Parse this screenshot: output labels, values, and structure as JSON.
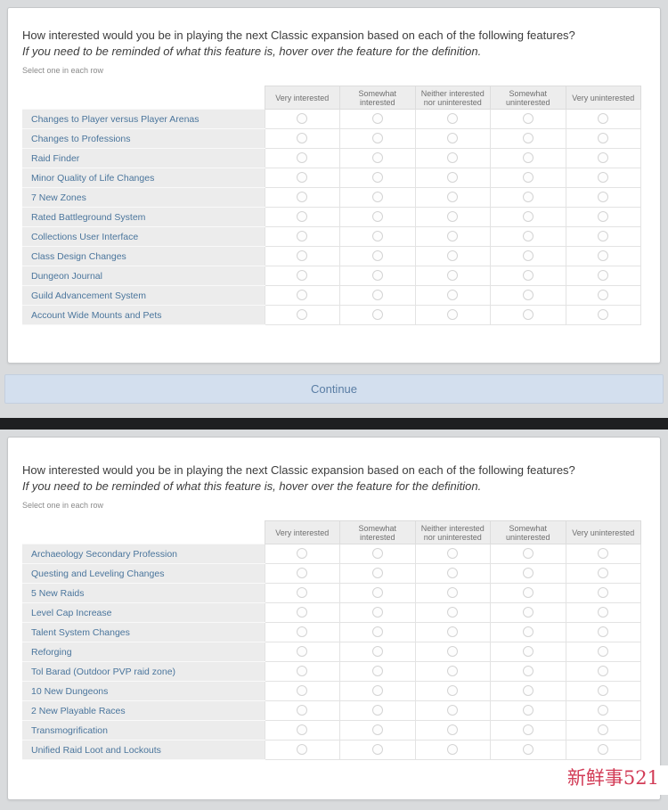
{
  "question": {
    "title": "How interested would you be in playing the next Classic expansion based on each of the following features?",
    "subtitle": "If you need to be reminded of what this feature is, hover over the feature for the definition.",
    "instruction": "Select one in each row"
  },
  "columns": [
    "Very interested",
    "Somewhat interested",
    "Neither interested nor uninterested",
    "Somewhat uninterested",
    "Very uninterested"
  ],
  "panel1": {
    "rows": [
      "Changes to Player versus Player Arenas",
      "Changes to Professions",
      "Raid Finder",
      "Minor Quality of Life Changes",
      "7 New Zones",
      "Rated Battleground System",
      "Collections User Interface",
      "Class Design Changes",
      "Dungeon Journal",
      "Guild Advancement System",
      "Account Wide Mounts and Pets"
    ]
  },
  "panel2": {
    "rows": [
      "Archaeology Secondary Profession",
      "Questing and Leveling Changes",
      "5 New Raids",
      "Level Cap Increase",
      "Talent System Changes",
      "Reforging",
      "Tol Barad (Outdoor PVP raid zone)",
      "10 New Dungeons",
      "2 New Playable Races",
      "Transmogrification",
      "Unified Raid Loot and Lockouts"
    ]
  },
  "radio_state": "unselected",
  "continue_label": "Continue",
  "watermark": "新鲜事521",
  "colors": {
    "page_bg": "#d9dbdd",
    "button_blue": "#d3dfee",
    "button_text_blue": "#5a7da4",
    "row_label_blue": "#4a759c",
    "divider_black": "#1e1f21",
    "watermark_red": "#d23b56",
    "header_cell_gray": "#ededed",
    "label_cell_gray": "#ececec"
  }
}
